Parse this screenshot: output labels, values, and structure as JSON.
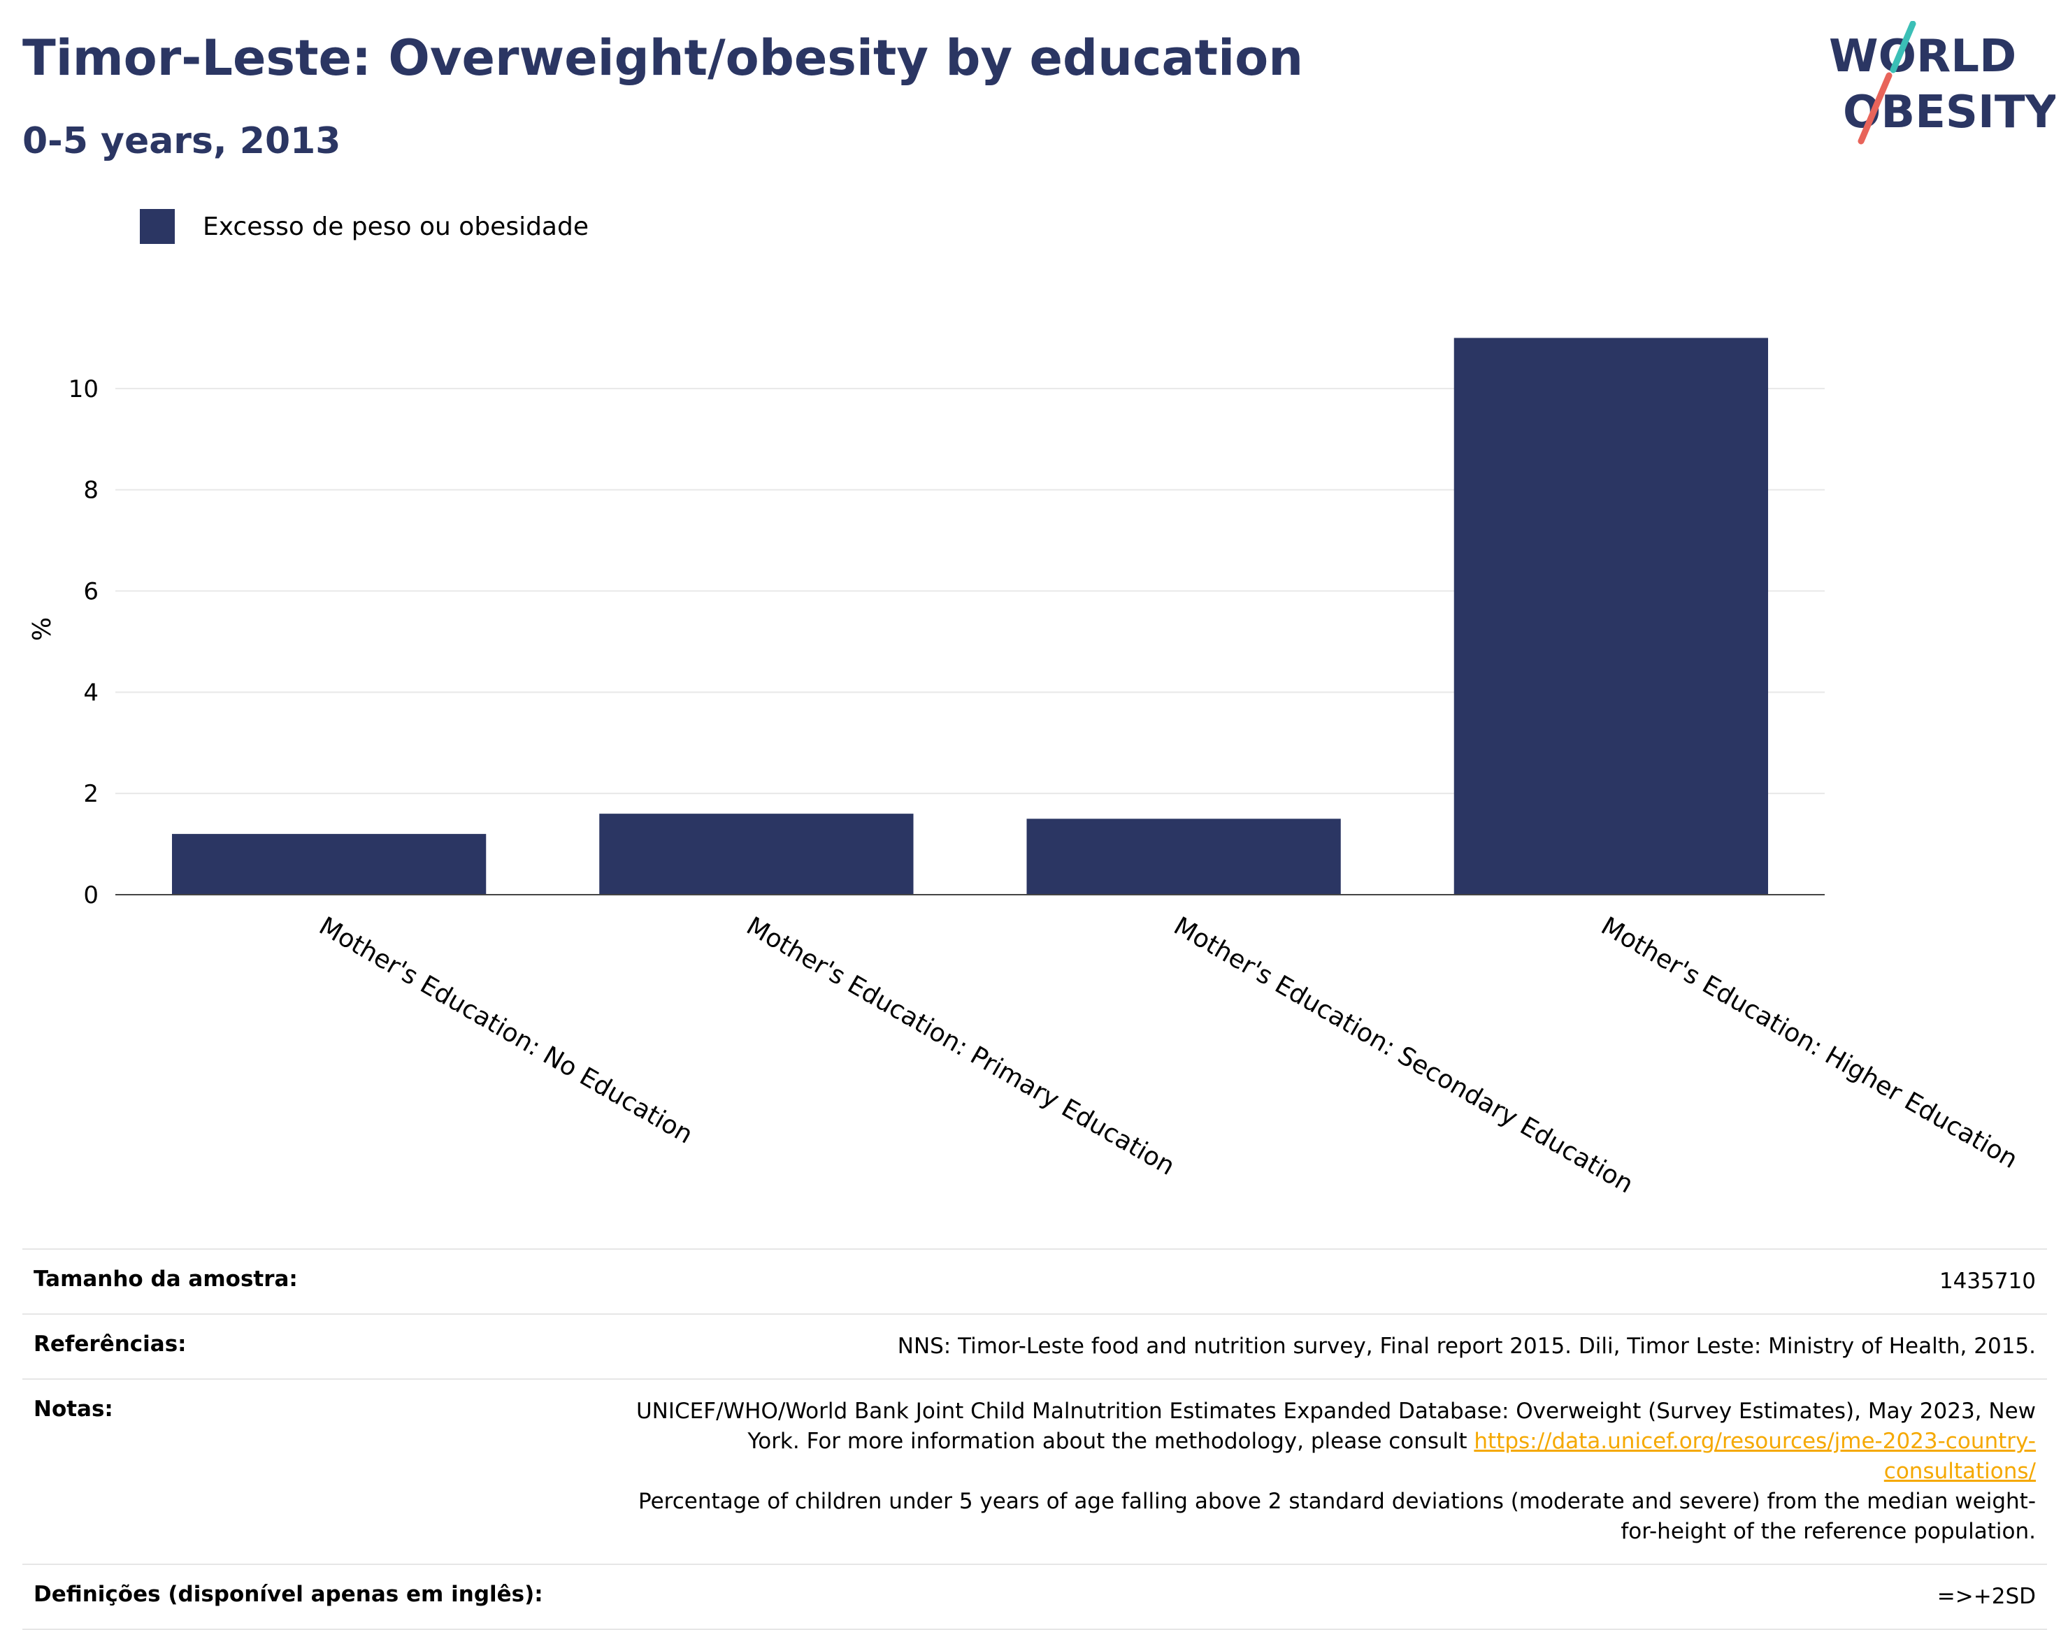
{
  "header": {
    "title": "Timor-Leste: Overweight/obesity by education",
    "subtitle": "0-5 years, 2013"
  },
  "logo": {
    "line1": "WORLD",
    "line2": "OBESITY",
    "accent_teal": "#3bbfb6",
    "accent_red": "#e8645a",
    "text_color": "#2b3663"
  },
  "legend": {
    "label": "Excesso de peso ou obesidade",
    "color": "#2b3663"
  },
  "chart_data": {
    "type": "bar",
    "title": "Timor-Leste: Overweight/obesity by education",
    "ylabel": "%",
    "xlabel": "",
    "ylim": [
      0,
      11.6
    ],
    "yticks": [
      0,
      2,
      4,
      6,
      8,
      10
    ],
    "grid": true,
    "legend_position": "top-left",
    "categories": [
      "Mother's Education: No Education",
      "Mother's Education: Primary Education",
      "Mother's Education: Secondary Education",
      "Mother's Education: Higher Education"
    ],
    "series": [
      {
        "name": "Excesso de peso ou obesidade",
        "values": [
          1.2,
          1.6,
          1.5,
          11.0
        ],
        "color": "#2b3663"
      }
    ]
  },
  "info": {
    "sample_label": "Tamanho da amostra:",
    "sample_value": "1435710",
    "references_label": "Referências:",
    "references_value": "NNS: Timor-Leste food and nutrition survey, Final report 2015. Dili, Timor Leste: Ministry of Health, 2015.",
    "notes_label": "Notas:",
    "notes_text_1": "UNICEF/WHO/World Bank Joint Child Malnutrition Estimates Expanded Database: Overweight (Survey Estimates), May 2023, New York. For more information about the methodology, please consult ",
    "notes_link": "https://data.unicef.org/resources/jme-2023-country-consultations/",
    "notes_text_2": "Percentage of children under 5 years of age falling above 2 standard deviations (moderate and severe) from the median weight-for-height of the reference population.",
    "definitions_label": "Definições (disponível apenas em inglês):",
    "definitions_value": "=>+2SD"
  }
}
